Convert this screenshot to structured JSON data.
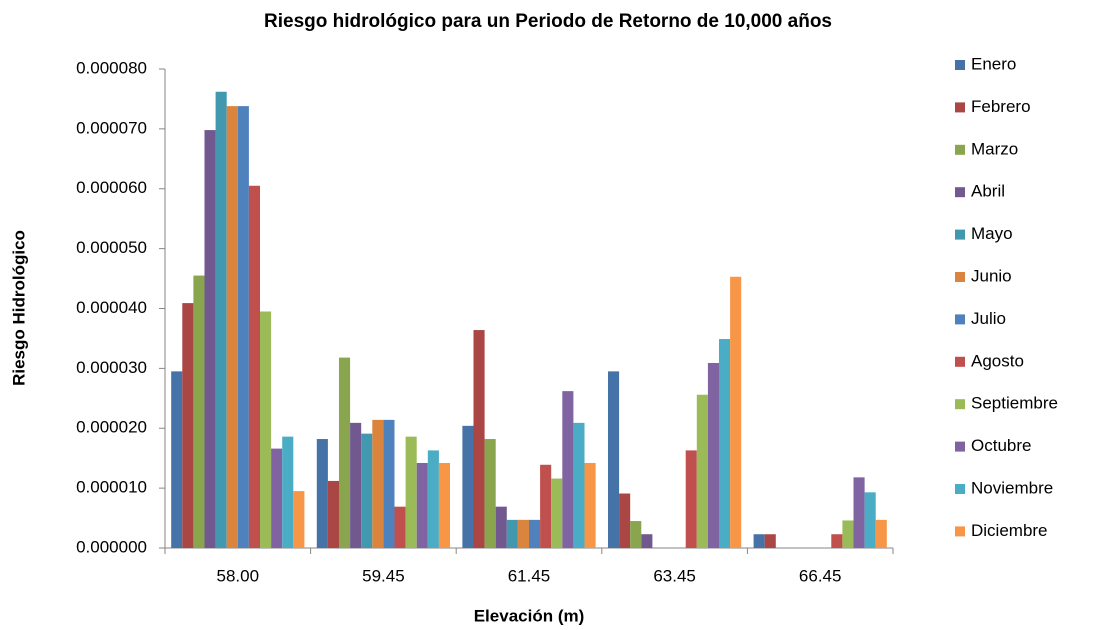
{
  "chart_data": {
    "type": "bar",
    "title": "Riesgo hidrológico para un Periodo  de Retorno de 10,000 años",
    "x_label": "Elevación (m)",
    "y_label": "Riesgo Hidrológico",
    "categories": [
      "58.00",
      "59.45",
      "61.45",
      "63.45",
      "66.45"
    ],
    "ylim": [
      0,
      8e-05
    ],
    "yticks": [
      {
        "value": 0,
        "label": "0.000000"
      },
      {
        "value": 1e-05,
        "label": "0.000010"
      },
      {
        "value": 2e-05,
        "label": "0.000020"
      },
      {
        "value": 3e-05,
        "label": "0.000030"
      },
      {
        "value": 4e-05,
        "label": "0.000040"
      },
      {
        "value": 5e-05,
        "label": "0.000050"
      },
      {
        "value": 6e-05,
        "label": "0.000060"
      },
      {
        "value": 7e-05,
        "label": "0.000070"
      },
      {
        "value": 8e-05,
        "label": "0.000080"
      }
    ],
    "legend": "right",
    "series": [
      {
        "name": "Enero",
        "color": "#4572a7",
        "values": [
          2.95e-05,
          1.82e-05,
          2.04e-05,
          2.95e-05,
          2.3e-06
        ]
      },
      {
        "name": "Febrero",
        "color": "#aa4643",
        "values": [
          4.09e-05,
          1.12e-05,
          3.64e-05,
          9.1e-06,
          2.3e-06
        ]
      },
      {
        "name": "Marzo",
        "color": "#89a54e",
        "values": [
          4.55e-05,
          3.18e-05,
          1.82e-05,
          4.5e-06,
          0
        ]
      },
      {
        "name": "Abril",
        "color": "#71588f",
        "values": [
          6.98e-05,
          2.09e-05,
          6.9e-06,
          2.3e-06,
          0
        ]
      },
      {
        "name": "Mayo",
        "color": "#4198af",
        "values": [
          7.62e-05,
          1.91e-05,
          4.7e-06,
          0,
          0
        ]
      },
      {
        "name": "Junio",
        "color": "#db843d",
        "values": [
          7.38e-05,
          2.14e-05,
          4.7e-06,
          0,
          0
        ]
      },
      {
        "name": "Julio",
        "color": "#4f81bd",
        "values": [
          7.38e-05,
          2.14e-05,
          4.7e-06,
          0,
          0
        ]
      },
      {
        "name": "Agosto",
        "color": "#c0504d",
        "values": [
          6.05e-05,
          6.9e-06,
          1.39e-05,
          1.63e-05,
          2.3e-06
        ]
      },
      {
        "name": "Septiembre",
        "color": "#9bbb59",
        "values": [
          3.95e-05,
          1.86e-05,
          1.16e-05,
          2.56e-05,
          4.6e-06
        ]
      },
      {
        "name": "Octubre",
        "color": "#8064a2",
        "values": [
          1.66e-05,
          1.42e-05,
          2.62e-05,
          3.09e-05,
          1.18e-05
        ]
      },
      {
        "name": "Noviembre",
        "color": "#4bacc6",
        "values": [
          1.86e-05,
          1.63e-05,
          2.09e-05,
          3.49e-05,
          9.3e-06
        ]
      },
      {
        "name": "Diciembre",
        "color": "#f79646",
        "values": [
          9.5e-06,
          1.42e-05,
          1.42e-05,
          4.53e-05,
          4.7e-06
        ]
      }
    ]
  }
}
